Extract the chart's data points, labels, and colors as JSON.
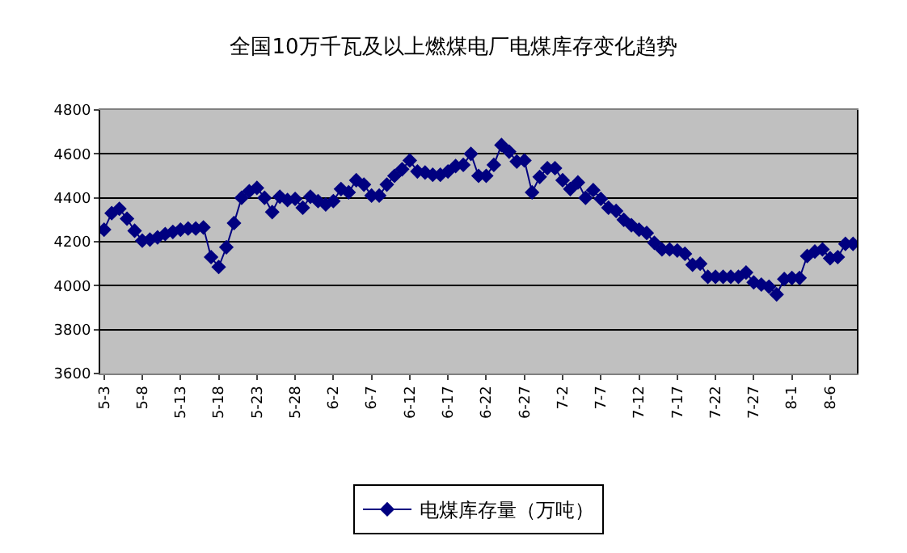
{
  "chart_data": {
    "type": "line",
    "title": "全国10万千瓦及以上燃煤电厂电煤库存变化趋势",
    "categories": [
      "5-3",
      null,
      null,
      null,
      null,
      "5-8",
      null,
      null,
      null,
      null,
      "5-13",
      null,
      null,
      null,
      null,
      "5-18",
      null,
      null,
      null,
      null,
      "5-23",
      null,
      null,
      null,
      null,
      "5-28",
      null,
      null,
      null,
      null,
      "6-2",
      null,
      null,
      null,
      null,
      "6-7",
      null,
      null,
      null,
      null,
      "6-12",
      null,
      null,
      null,
      null,
      "6-17",
      null,
      null,
      null,
      null,
      "6-22",
      null,
      null,
      null,
      null,
      "6-27",
      null,
      null,
      null,
      null,
      "7-2",
      null,
      null,
      null,
      null,
      "7-7",
      null,
      null,
      null,
      null,
      "7-12",
      null,
      null,
      null,
      null,
      "7-17",
      null,
      null,
      null,
      null,
      "7-22",
      null,
      null,
      null,
      null,
      "7-27",
      null,
      null,
      null,
      null,
      "8-1",
      null,
      null,
      null,
      null,
      "8-6",
      null,
      null,
      null
    ],
    "series": [
      {
        "name": "电煤库存量（万吨）",
        "color": "#000080",
        "values": [
          4255,
          4330,
          4350,
          4305,
          4250,
          4205,
          4210,
          4220,
          4235,
          4245,
          4255,
          4260,
          4260,
          4265,
          4130,
          4085,
          4175,
          4285,
          4400,
          4430,
          4445,
          4400,
          4335,
          4405,
          4390,
          4395,
          4355,
          4405,
          4385,
          4370,
          4385,
          4440,
          4425,
          4480,
          4460,
          4410,
          4410,
          4460,
          4500,
          4530,
          4570,
          4520,
          4515,
          4505,
          4505,
          4520,
          4545,
          4550,
          4600,
          4500,
          4500,
          4550,
          4640,
          4610,
          4565,
          4570,
          4425,
          4495,
          4535,
          4535,
          4480,
          4440,
          4470,
          4400,
          4435,
          4395,
          4355,
          4340,
          4300,
          4275,
          4255,
          4240,
          4195,
          4165,
          4165,
          4160,
          4145,
          4095,
          4100,
          4040,
          4040,
          4040,
          4040,
          4040,
          4060,
          4015,
          4005,
          3995,
          3960,
          4030,
          4035,
          4035,
          4135,
          4155,
          4165,
          4125,
          4130,
          4190,
          4190
        ]
      }
    ],
    "ylim": [
      3600,
      4800
    ],
    "yticks": [
      3600,
      3800,
      4000,
      4200,
      4400,
      4600,
      4800
    ],
    "grid": "y",
    "legend": "bottom",
    "marker": "diamond",
    "line_style": "solid"
  }
}
